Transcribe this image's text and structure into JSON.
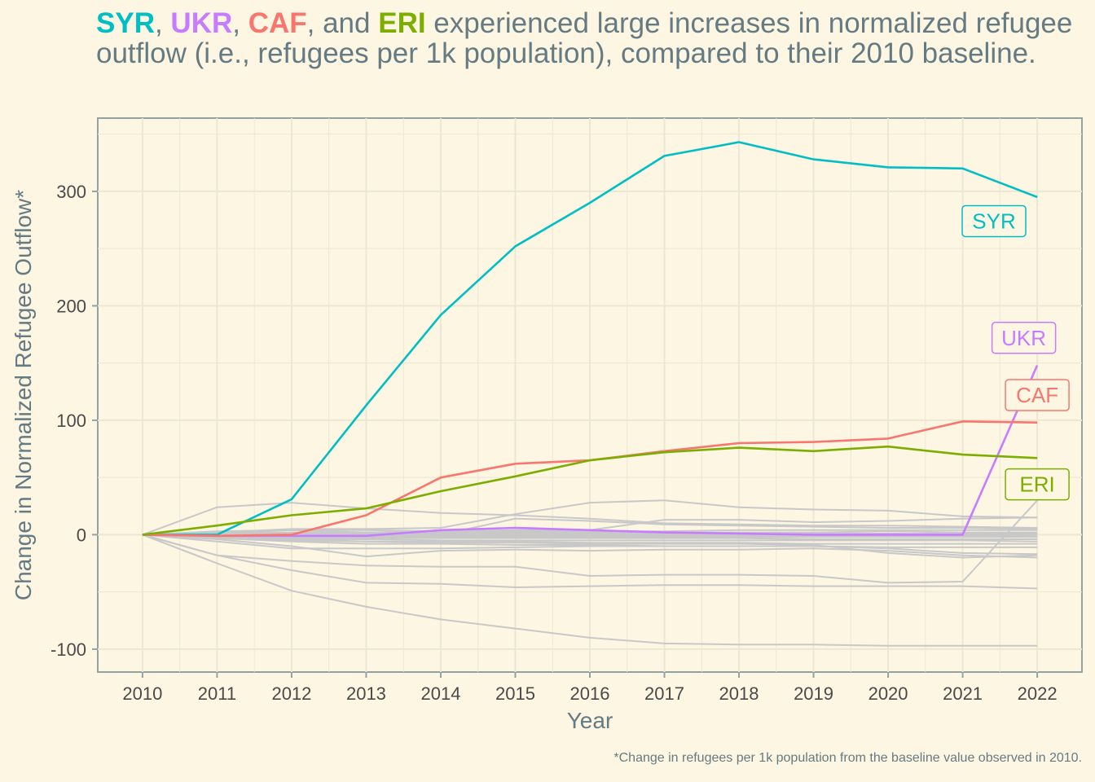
{
  "title": {
    "parts": [
      {
        "text": "SYR",
        "color": "#00bfc4",
        "bold": true
      },
      {
        "text": ", ",
        "color": "#657b83",
        "bold": false
      },
      {
        "text": "UKR",
        "color": "#c77cff",
        "bold": true
      },
      {
        "text": ", ",
        "color": "#657b83",
        "bold": false
      },
      {
        "text": "CAF",
        "color": "#f8766d",
        "bold": true
      },
      {
        "text": ", and ",
        "color": "#657b83",
        "bold": false
      },
      {
        "text": "ERI",
        "color": "#7cae00",
        "bold": true
      },
      {
        "text": " experienced large increases in normalized refugee outflow (i.e., refugees per 1k population), compared to their 2010 baseline.",
        "color": "#657b83",
        "bold": false
      }
    ]
  },
  "caption": "*Change in refugees per 1k population from the baseline value observed in 2010.",
  "chart_data": {
    "type": "line",
    "xlabel": "Year",
    "ylabel": "Change in Normalized Refugee Outflow*",
    "x": [
      2010,
      2011,
      2012,
      2013,
      2014,
      2015,
      2016,
      2017,
      2018,
      2019,
      2020,
      2021,
      2022
    ],
    "xlim": [
      2009.4,
      2022.6
    ],
    "ylim": [
      -120,
      364
    ],
    "yticks": [
      -100,
      0,
      100,
      200,
      300
    ],
    "grid": true,
    "legend": "direct labels at line ends",
    "highlight_series": [
      {
        "name": "SYR",
        "color": "#00bfc4",
        "values": [
          0,
          0,
          31,
          113,
          192,
          252,
          290,
          331,
          343,
          328,
          321,
          320,
          295
        ]
      },
      {
        "name": "UKR",
        "color": "#c77cff",
        "values": [
          0,
          -1,
          -1,
          -1,
          4,
          6,
          4,
          2,
          1,
          0,
          0,
          0,
          148
        ]
      },
      {
        "name": "CAF",
        "color": "#f8766d",
        "values": [
          0,
          -1,
          0,
          17,
          50,
          62,
          65,
          73,
          80,
          81,
          84,
          99,
          98
        ]
      },
      {
        "name": "ERI",
        "color": "#7cae00",
        "values": [
          0,
          8,
          17,
          23,
          38,
          51,
          65,
          72,
          76,
          73,
          77,
          70,
          67
        ]
      }
    ],
    "background_series_color": "#c8c8c8",
    "background_series": [
      [
        0,
        24,
        28,
        23,
        19,
        17,
        14,
        10,
        9,
        8,
        8,
        7,
        6
      ],
      [
        0,
        2,
        5,
        5,
        6,
        18,
        28,
        30,
        24,
        22,
        21,
        16,
        15
      ],
      [
        0,
        3,
        4,
        2,
        0,
        14,
        12,
        9,
        8,
        7,
        6,
        6,
        5
      ],
      [
        0,
        1,
        4,
        4,
        3,
        4,
        4,
        13,
        13,
        11,
        12,
        14,
        15
      ],
      [
        0,
        1,
        2,
        2,
        3,
        3,
        3,
        3,
        4,
        4,
        4,
        4,
        4
      ],
      [
        0,
        1,
        1,
        2,
        2,
        2,
        2,
        2,
        2,
        2,
        3,
        2,
        2
      ],
      [
        0,
        0,
        1,
        1,
        1,
        1,
        1,
        1,
        1,
        1,
        1,
        1,
        1
      ],
      [
        0,
        0,
        0,
        0,
        0,
        0,
        0,
        0,
        0,
        0,
        0,
        0,
        0
      ],
      [
        0,
        0,
        -1,
        -1,
        -1,
        -1,
        -1,
        -1,
        -1,
        -1,
        -1,
        -1,
        -1
      ],
      [
        0,
        -1,
        -2,
        -2,
        -2,
        -2,
        -2,
        -2,
        -2,
        -2,
        -2,
        -2,
        -2
      ],
      [
        0,
        -1,
        -3,
        -3,
        -3,
        -3,
        -3,
        -3,
        -3,
        -4,
        -4,
        -4,
        -4
      ],
      [
        0,
        -2,
        -4,
        -4,
        -5,
        -5,
        -5,
        -5,
        -5,
        -5,
        -5,
        -5,
        -6
      ],
      [
        0,
        -2,
        -5,
        -6,
        -6,
        -6,
        -7,
        -7,
        -7,
        -8,
        -8,
        -8,
        -8
      ],
      [
        0,
        -3,
        -6,
        -8,
        -8,
        -9,
        -9,
        -10,
        -10,
        -10,
        -11,
        -11,
        -11
      ],
      [
        0,
        -6,
        -12,
        -12,
        -12,
        -11,
        -10,
        -10,
        -10,
        -10,
        -12,
        -16,
        -17
      ],
      [
        0,
        -4,
        -10,
        -19,
        -14,
        -13,
        -14,
        -13,
        -13,
        -12,
        -14,
        -18,
        -20
      ],
      [
        0,
        -2,
        -4,
        -6,
        -7,
        -7,
        -8,
        -8,
        -8,
        -9,
        -16,
        -20,
        -18
      ],
      [
        0,
        -18,
        -23,
        -27,
        -28,
        -28,
        -36,
        -35,
        -35,
        -36,
        -42,
        -41,
        30
      ],
      [
        0,
        -18,
        -31,
        -42,
        -43,
        -46,
        -45,
        -44,
        -44,
        -45,
        -45,
        -45,
        -47
      ],
      [
        0,
        -25,
        -49,
        -63,
        -74,
        -82,
        -90,
        -95,
        -96,
        -96,
        -97,
        -97,
        -97
      ]
    ]
  }
}
